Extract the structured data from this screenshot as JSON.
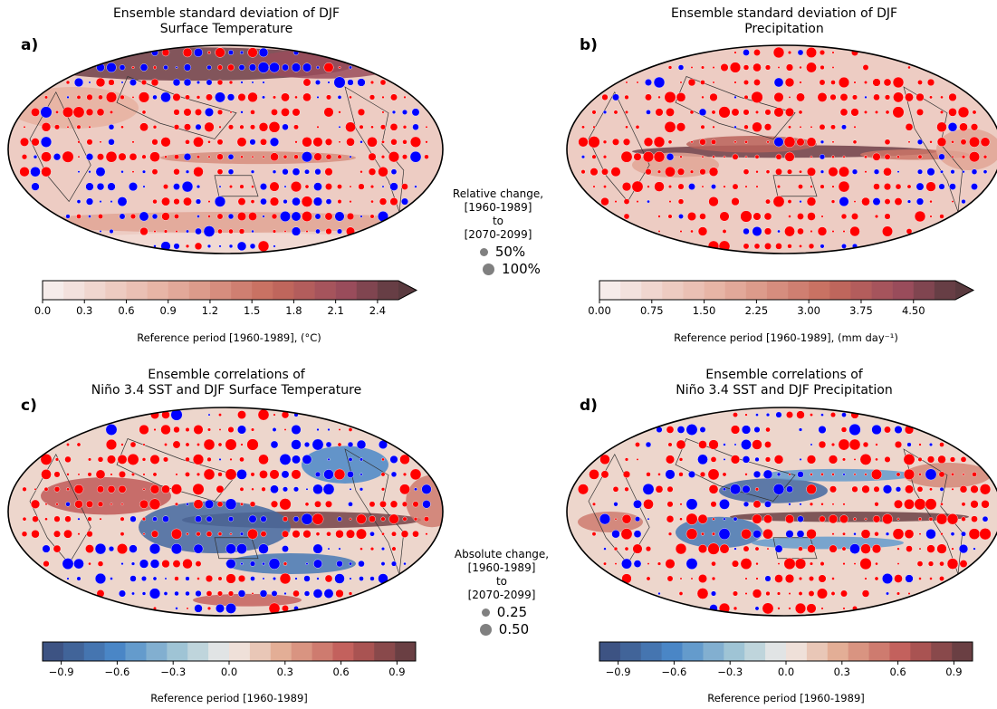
{
  "chart_data": [
    {
      "id": "a",
      "type": "heatmap",
      "panel_label": "a)",
      "title": "Ensemble standard deviation of DJF\nSurface Temperature",
      "colorbar": {
        "label": "Reference period [1960-1989], (°C)",
        "ticks": [
          "0.0",
          "0.3",
          "0.6",
          "0.9",
          "1.2",
          "1.5",
          "1.8",
          "2.1",
          "2.4"
        ],
        "range": [
          0,
          2.55
        ],
        "colormap": "white-to-red-sequential",
        "extend": "max"
      }
    },
    {
      "id": "b",
      "type": "heatmap",
      "panel_label": "b)",
      "title": "Ensemble standard deviation of DJF\nPrecipitation",
      "colorbar": {
        "label": "Reference period [1960-1989], (mm day⁻¹)",
        "ticks": [
          "0.00",
          "0.75",
          "1.50",
          "2.25",
          "3.00",
          "3.75",
          "4.50"
        ],
        "range": [
          0,
          5.1
        ],
        "colormap": "white-to-red-sequential",
        "extend": "max"
      }
    },
    {
      "id": "c",
      "type": "heatmap",
      "panel_label": "c)",
      "title": "Ensemble correlations of\nNiño 3.4 SST and DJF Surface Temperature",
      "colorbar": {
        "label": "Reference period [1960-1989]",
        "ticks": [
          "−0.9",
          "−0.6",
          "−0.3",
          "0.0",
          "0.3",
          "0.6",
          "0.9"
        ],
        "range": [
          -1.0,
          1.0
        ],
        "colormap": "blue-white-red-diverging",
        "extend": "neither"
      }
    },
    {
      "id": "d",
      "type": "heatmap",
      "panel_label": "d)",
      "title": "Ensemble correlations of\nNiño 3.4 SST and DJF Precipitation",
      "colorbar": {
        "label": "Reference period [1960-1989]",
        "ticks": [
          "−0.9",
          "−0.6",
          "−0.3",
          "0.0",
          "0.3",
          "0.6",
          "0.9"
        ],
        "range": [
          -1.0,
          1.0
        ],
        "colormap": "blue-white-red-diverging",
        "extend": "neither"
      }
    }
  ],
  "legends": {
    "relative": {
      "lines": [
        "Relative change,",
        "[1960-1989]",
        "to",
        "[2070-2099]"
      ],
      "entries": [
        {
          "label": "50%",
          "value": 50
        },
        {
          "label": "100%",
          "value": 100
        }
      ]
    },
    "absolute": {
      "lines": [
        "Absolute change,",
        "[1960-1989]",
        "to",
        "[2070-2099]"
      ],
      "entries": [
        {
          "label": "0.25",
          "value": 0.25
        },
        {
          "label": "0.50",
          "value": 0.5
        }
      ]
    }
  },
  "colors": {
    "increase_marker": "#ff0000",
    "decrease_marker": "#0000ff",
    "legend_marker": "#808080",
    "seq_low": "#f7f2f1",
    "seq_high": "#5a3a3f",
    "div_low": "#3b4a78",
    "div_high": "#5a3a3f"
  }
}
